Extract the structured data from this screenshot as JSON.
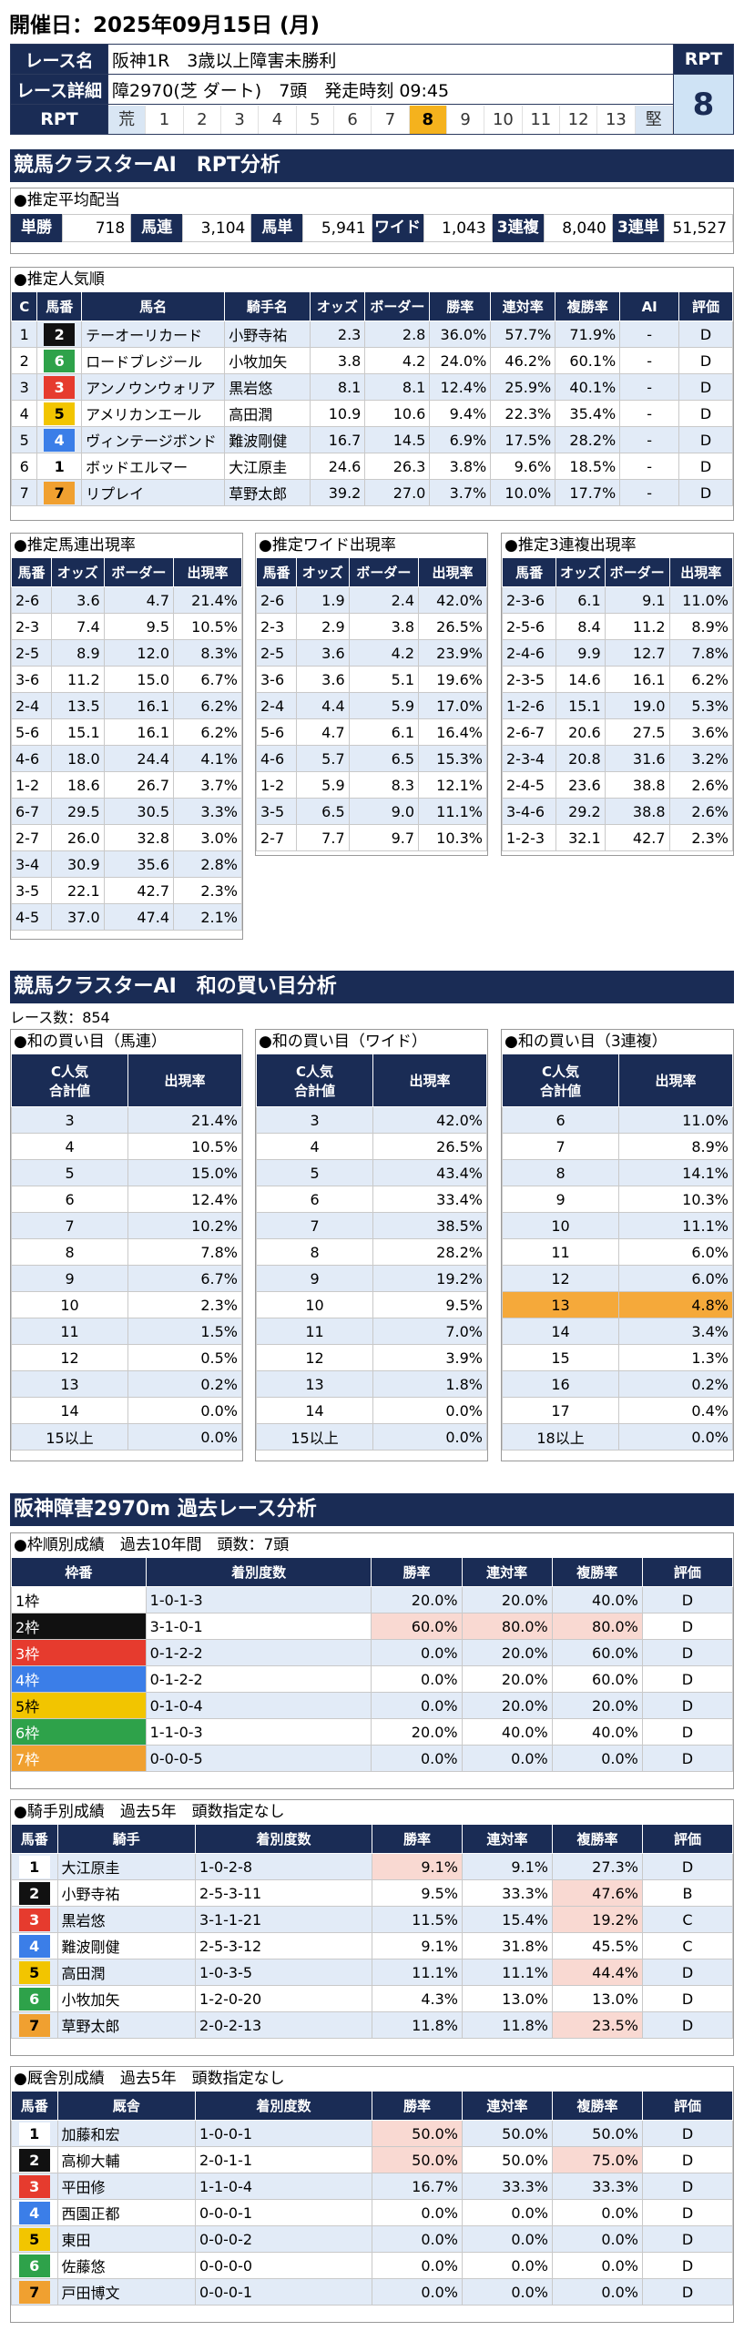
{
  "date": "開催日：2025年09月15日 (月)",
  "header": {
    "race_name_label": "レース名",
    "race_name": "阪神1R　3歳以上障害未勝利",
    "detail_label": "レース詳細",
    "detail": "障2970(芝 ダート)　7頭　発走時刻 09:45",
    "rpt_label": "RPT",
    "rpt_cells": [
      "荒",
      "1",
      "2",
      "3",
      "4",
      "5",
      "6",
      "7",
      "8",
      "9",
      "10",
      "11",
      "12",
      "13",
      "堅"
    ],
    "rpt_head": "RPT",
    "rpt_value": "8"
  },
  "sec1": "競馬クラスターAI　RPT分析",
  "pay": {
    "title": "●推定平均配当",
    "items": [
      {
        "k": "単勝",
        "v": "718"
      },
      {
        "k": "馬連",
        "v": "3,104"
      },
      {
        "k": "馬単",
        "v": "5,941"
      },
      {
        "k": "ワイド",
        "v": "1,043"
      },
      {
        "k": "3連複",
        "v": "8,040"
      },
      {
        "k": "3連単",
        "v": "51,527"
      }
    ]
  },
  "pop": {
    "title": "●推定人気順",
    "headers": [
      "C",
      "馬番",
      "馬名",
      "騎手名",
      "オッズ",
      "ボーダー",
      "勝率",
      "連対率",
      "複勝率",
      "AI",
      "評価"
    ],
    "rows": [
      [
        "1",
        "2",
        "テーオーリカード",
        "小野寺祐",
        "2.3",
        "2.8",
        "36.0%",
        "57.7%",
        "71.9%",
        "-",
        "D"
      ],
      [
        "2",
        "6",
        "ロードブレジール",
        "小牧加矢",
        "3.8",
        "4.2",
        "24.0%",
        "46.2%",
        "60.1%",
        "-",
        "D"
      ],
      [
        "3",
        "3",
        "アンノウンウォリア",
        "黒岩悠",
        "8.1",
        "8.1",
        "12.4%",
        "25.9%",
        "40.1%",
        "-",
        "D"
      ],
      [
        "4",
        "5",
        "アメリカンエール",
        "高田潤",
        "10.9",
        "10.6",
        "9.4%",
        "22.3%",
        "35.4%",
        "-",
        "D"
      ],
      [
        "5",
        "4",
        "ヴィンテージボンド",
        "難波剛健",
        "16.7",
        "14.5",
        "6.9%",
        "17.5%",
        "28.2%",
        "-",
        "D"
      ],
      [
        "6",
        "1",
        "ボッドエルマー",
        "大江原圭",
        "24.6",
        "26.3",
        "3.8%",
        "9.6%",
        "18.5%",
        "-",
        "D"
      ],
      [
        "7",
        "7",
        "リプレイ",
        "草野太郎",
        "39.2",
        "27.0",
        "3.7%",
        "10.0%",
        "17.7%",
        "-",
        "D"
      ]
    ]
  },
  "umaren": {
    "title": "●推定馬連出現率",
    "headers": [
      "馬番",
      "オッズ",
      "ボーダー",
      "出現率"
    ],
    "rows": [
      [
        "2-6",
        "3.6",
        "4.7",
        "21.4%"
      ],
      [
        "2-3",
        "7.4",
        "9.5",
        "10.5%"
      ],
      [
        "2-5",
        "8.9",
        "12.0",
        "8.3%"
      ],
      [
        "3-6",
        "11.2",
        "15.0",
        "6.7%"
      ],
      [
        "2-4",
        "13.5",
        "16.1",
        "6.2%"
      ],
      [
        "5-6",
        "15.1",
        "16.1",
        "6.2%"
      ],
      [
        "4-6",
        "18.0",
        "24.4",
        "4.1%"
      ],
      [
        "1-2",
        "18.6",
        "26.7",
        "3.7%"
      ],
      [
        "6-7",
        "29.5",
        "30.5",
        "3.3%"
      ],
      [
        "2-7",
        "26.0",
        "32.8",
        "3.0%"
      ],
      [
        "3-4",
        "30.9",
        "35.6",
        "2.8%"
      ],
      [
        "3-5",
        "22.1",
        "42.7",
        "2.3%"
      ],
      [
        "4-5",
        "37.0",
        "47.4",
        "2.1%"
      ]
    ]
  },
  "wide": {
    "title": "●推定ワイド出現率",
    "headers": [
      "馬番",
      "オッズ",
      "ボーダー",
      "出現率"
    ],
    "rows": [
      [
        "2-6",
        "1.9",
        "2.4",
        "42.0%"
      ],
      [
        "2-3",
        "2.9",
        "3.8",
        "26.5%"
      ],
      [
        "2-5",
        "3.6",
        "4.2",
        "23.9%"
      ],
      [
        "3-6",
        "3.6",
        "5.1",
        "19.6%"
      ],
      [
        "2-4",
        "4.4",
        "5.9",
        "17.0%"
      ],
      [
        "5-6",
        "4.7",
        "6.1",
        "16.4%"
      ],
      [
        "4-6",
        "5.7",
        "6.5",
        "15.3%"
      ],
      [
        "1-2",
        "5.9",
        "8.3",
        "12.1%"
      ],
      [
        "3-5",
        "6.5",
        "9.0",
        "11.1%"
      ],
      [
        "2-7",
        "7.7",
        "9.7",
        "10.3%"
      ]
    ]
  },
  "sanrenpuku": {
    "title": "●推定3連複出現率",
    "headers": [
      "馬番",
      "オッズ",
      "ボーダー",
      "出現率"
    ],
    "rows": [
      [
        "2-3-6",
        "6.1",
        "9.1",
        "11.0%"
      ],
      [
        "2-5-6",
        "8.4",
        "11.2",
        "8.9%"
      ],
      [
        "2-4-6",
        "9.9",
        "12.7",
        "7.8%"
      ],
      [
        "2-3-5",
        "14.6",
        "16.1",
        "6.2%"
      ],
      [
        "1-2-6",
        "15.1",
        "19.0",
        "5.3%"
      ],
      [
        "2-6-7",
        "20.6",
        "27.5",
        "3.6%"
      ],
      [
        "2-3-4",
        "20.8",
        "31.6",
        "3.2%"
      ],
      [
        "2-4-5",
        "23.6",
        "38.8",
        "2.6%"
      ],
      [
        "3-4-6",
        "29.2",
        "38.8",
        "2.6%"
      ],
      [
        "1-2-3",
        "32.1",
        "42.7",
        "2.3%"
      ]
    ]
  },
  "sec2": "競馬クラスターAI　和の買い目分析",
  "race_count": "レース数：854",
  "sum_umaren": {
    "title": "●和の買い目（馬連）",
    "h1": "C人気\n合計値",
    "h2": "出現率",
    "rows": [
      [
        "3",
        "21.4%"
      ],
      [
        "4",
        "10.5%"
      ],
      [
        "5",
        "15.0%"
      ],
      [
        "6",
        "12.4%"
      ],
      [
        "7",
        "10.2%"
      ],
      [
        "8",
        "7.8%"
      ],
      [
        "9",
        "6.7%"
      ],
      [
        "10",
        "2.3%"
      ],
      [
        "11",
        "1.5%"
      ],
      [
        "12",
        "0.5%"
      ],
      [
        "13",
        "0.2%"
      ],
      [
        "14",
        "0.0%"
      ],
      [
        "15以上",
        "0.0%"
      ]
    ]
  },
  "sum_wide": {
    "title": "●和の買い目（ワイド）",
    "h1": "C人気\n合計値",
    "h2": "出現率",
    "rows": [
      [
        "3",
        "42.0%"
      ],
      [
        "4",
        "26.5%"
      ],
      [
        "5",
        "43.4%"
      ],
      [
        "6",
        "33.4%"
      ],
      [
        "7",
        "38.5%"
      ],
      [
        "8",
        "28.2%"
      ],
      [
        "9",
        "19.2%"
      ],
      [
        "10",
        "9.5%"
      ],
      [
        "11",
        "7.0%"
      ],
      [
        "12",
        "3.9%"
      ],
      [
        "13",
        "1.8%"
      ],
      [
        "14",
        "0.0%"
      ],
      [
        "15以上",
        "0.0%"
      ]
    ]
  },
  "sum_3puku": {
    "title": "●和の買い目（3連複）",
    "h1": "C人気\n合計値",
    "h2": "出現率",
    "rows": [
      [
        "6",
        "11.0%"
      ],
      [
        "7",
        "8.9%"
      ],
      [
        "8",
        "14.1%"
      ],
      [
        "9",
        "10.3%"
      ],
      [
        "10",
        "11.1%"
      ],
      [
        "11",
        "6.0%"
      ],
      [
        "12",
        "6.0%"
      ],
      [
        "13",
        "4.8%"
      ],
      [
        "14",
        "3.4%"
      ],
      [
        "15",
        "1.3%"
      ],
      [
        "16",
        "0.2%"
      ],
      [
        "17",
        "0.4%"
      ],
      [
        "18以上",
        "0.0%"
      ]
    ]
  },
  "sec3": "阪神障害2970m 過去レース分析",
  "waku": {
    "title": "●枠順別成績　過去10年間　頭数：7頭",
    "headers": [
      "枠番",
      "着別度数",
      "勝率",
      "連対率",
      "複勝率",
      "評価"
    ],
    "rows": [
      [
        "1枠",
        "1-0-1-3",
        "20.0%",
        "20.0%",
        "40.0%",
        "D"
      ],
      [
        "2枠",
        "3-1-0-1",
        "60.0%",
        "80.0%",
        "80.0%",
        "D"
      ],
      [
        "3枠",
        "0-1-2-2",
        "0.0%",
        "20.0%",
        "60.0%",
        "D"
      ],
      [
        "4枠",
        "0-1-2-2",
        "0.0%",
        "20.0%",
        "60.0%",
        "D"
      ],
      [
        "5枠",
        "0-1-0-4",
        "0.0%",
        "20.0%",
        "20.0%",
        "D"
      ],
      [
        "6枠",
        "1-1-0-3",
        "20.0%",
        "40.0%",
        "40.0%",
        "D"
      ],
      [
        "7枠",
        "0-0-0-5",
        "0.0%",
        "0.0%",
        "0.0%",
        "D"
      ]
    ]
  },
  "jockey": {
    "title": "●騎手別成績　過去5年　頭数指定なし",
    "headers": [
      "馬番",
      "騎手",
      "着別度数",
      "勝率",
      "連対率",
      "複勝率",
      "評価"
    ],
    "rows": [
      [
        "1",
        "大江原圭",
        "1-0-2-8",
        "9.1%",
        "9.1%",
        "27.3%",
        "D"
      ],
      [
        "2",
        "小野寺祐",
        "2-5-3-11",
        "9.5%",
        "33.3%",
        "47.6%",
        "B"
      ],
      [
        "3",
        "黒岩悠",
        "3-1-1-21",
        "11.5%",
        "15.4%",
        "19.2%",
        "C"
      ],
      [
        "4",
        "難波剛健",
        "2-5-3-12",
        "9.1%",
        "31.8%",
        "45.5%",
        "C"
      ],
      [
        "5",
        "高田潤",
        "1-0-3-5",
        "11.1%",
        "11.1%",
        "44.4%",
        "D"
      ],
      [
        "6",
        "小牧加矢",
        "1-2-0-20",
        "4.3%",
        "13.0%",
        "13.0%",
        "D"
      ],
      [
        "7",
        "草野太郎",
        "2-0-2-13",
        "11.8%",
        "11.8%",
        "23.5%",
        "D"
      ]
    ]
  },
  "trainer": {
    "title": "●厩舎別成績　過去5年　頭数指定なし",
    "headers": [
      "馬番",
      "厩舎",
      "着別度数",
      "勝率",
      "連対率",
      "複勝率",
      "評価"
    ],
    "rows": [
      [
        "1",
        "加藤和宏",
        "1-0-0-1",
        "50.0%",
        "50.0%",
        "50.0%",
        "D"
      ],
      [
        "2",
        "高柳大輔",
        "2-0-1-1",
        "50.0%",
        "50.0%",
        "75.0%",
        "D"
      ],
      [
        "3",
        "平田修",
        "1-1-0-4",
        "16.7%",
        "33.3%",
        "33.3%",
        "D"
      ],
      [
        "4",
        "西園正都",
        "0-0-0-1",
        "0.0%",
        "0.0%",
        "0.0%",
        "D"
      ],
      [
        "5",
        "東田",
        "0-0-0-2",
        "0.0%",
        "0.0%",
        "0.0%",
        "D"
      ],
      [
        "6",
        "佐藤悠",
        "0-0-0-0",
        "0.0%",
        "0.0%",
        "0.0%",
        "D"
      ],
      [
        "7",
        "戸田博文",
        "0-0-0-1",
        "0.0%",
        "0.0%",
        "0.0%",
        "D"
      ]
    ]
  },
  "colors": {
    "navy": "#1a2c55",
    "waku": [
      "#ffffff",
      "#111111",
      "#e63b2e",
      "#3b7ee8",
      "#f2c500",
      "#2ea24a",
      "#f0a030"
    ],
    "highlight": "#f5a93a",
    "pink": "#f9d9d2"
  }
}
